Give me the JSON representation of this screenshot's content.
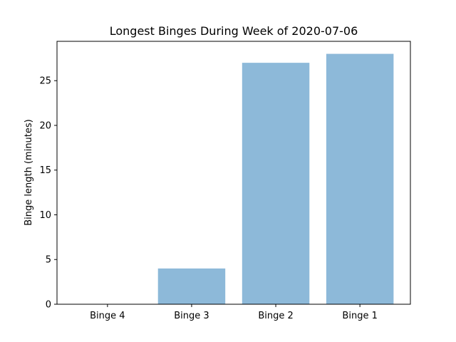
{
  "chart_data": {
    "type": "bar",
    "title": "Longest Binges During Week of 2020-07-06",
    "xlabel": "",
    "ylabel": "Binge length (minutes)",
    "categories": [
      "Binge 4",
      "Binge 3",
      "Binge 2",
      "Binge 1"
    ],
    "values": [
      0,
      4,
      27,
      28
    ],
    "ylim": [
      0,
      29.4
    ],
    "yticks": [
      0,
      5,
      10,
      15,
      20,
      25
    ],
    "grid": false,
    "bar_color": "#8db9d9"
  }
}
